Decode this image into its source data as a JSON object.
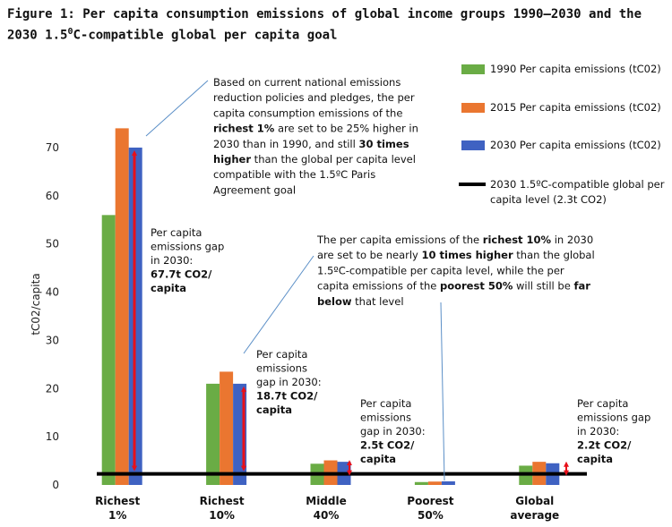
{
  "figure": {
    "title_main": "Figure 1: Per capita consumption emissions of global income groups 1990–2030 and the 2030 1.5",
    "title_super": "0",
    "title_tail": "C-compatible global per capita goal"
  },
  "chart_data": {
    "type": "bar",
    "ylabel": "tC02/capita",
    "ylim": [
      0,
      75
    ],
    "yticks": [
      "0",
      "10",
      "20",
      "30",
      "40",
      "50",
      "60",
      "70"
    ],
    "categories": [
      [
        "Richest",
        "1%"
      ],
      [
        "Richest",
        "10%"
      ],
      [
        "Middle",
        "40%"
      ],
      [
        "Poorest",
        "50%"
      ],
      [
        "Global",
        "average"
      ]
    ],
    "series": [
      {
        "name": "1990 Per capita emissions (tC02)",
        "color": "#6aac45",
        "values": [
          56,
          21,
          4.4,
          0.6,
          4.0
        ]
      },
      {
        "name": "2015 Per capita emissions (tC02)",
        "color": "#ea7630",
        "values": [
          74,
          23.5,
          5.1,
          0.7,
          4.8
        ]
      },
      {
        "name": "2030 Per capita emissions (tC02)",
        "color": "#3f62c2",
        "values": [
          70,
          21,
          4.8,
          0.75,
          4.5
        ]
      }
    ],
    "reference_line": {
      "value": 2.3,
      "lines": [
        "2030 1.5ºC-compatible global per",
        "capita level (2.3t CO2)"
      ],
      "color": "#000000"
    },
    "gaps": [
      {
        "category_index": 0,
        "value": 67.7,
        "lines": [
          "Per capita",
          "emissions gap",
          "in 2030:",
          "67.7t CO2/",
          "capita"
        ],
        "bold_from": 3
      },
      {
        "category_index": 1,
        "value": 18.7,
        "lines": [
          "Per capita",
          "emissions",
          "gap in 2030:",
          "18.7t CO2/",
          "capita"
        ],
        "bold_from": 3
      },
      {
        "category_index": 2,
        "value": 2.5,
        "lines": [
          "Per capita",
          "emissions",
          "gap in 2030:",
          "2.5t CO2/",
          "capita"
        ],
        "bold_from": 3
      },
      {
        "category_index": 4,
        "value": 2.2,
        "lines": [
          "Per capita",
          "emissions gap",
          "in 2030:",
          "2.2t CO2/",
          "capita"
        ],
        "bold_from": 3
      }
    ],
    "annotations": [
      {
        "id": "richest1",
        "lines": [
          [
            {
              "t": "Based on current national emissions"
            }
          ],
          [
            {
              "t": "reduction policies and pledges, the per"
            }
          ],
          [
            {
              "t": "capita consumption emissions of the"
            }
          ],
          [
            {
              "t": "richest 1%",
              "b": true
            },
            {
              "t": " are set to be 25% higher in"
            }
          ],
          [
            {
              "t": "2030 than in 1990, and still "
            },
            {
              "t": "30 times",
              "b": true
            }
          ],
          [
            {
              "t": "higher",
              "b": true
            },
            {
              "t": " than the global per capita level"
            }
          ],
          [
            {
              "t": "compatible with the 1.5ºC Paris"
            }
          ],
          [
            {
              "t": "Agreement goal"
            }
          ]
        ]
      },
      {
        "id": "richest10",
        "lines": [
          [
            {
              "t": "The per capita emissions of the "
            },
            {
              "t": "richest 10%",
              "b": true
            },
            {
              "t": " in 2030"
            }
          ],
          [
            {
              "t": "are set to be nearly "
            },
            {
              "t": "10 times higher",
              "b": true
            },
            {
              "t": " than the global"
            }
          ],
          [
            {
              "t": "1.5ºC-compatible per capita level, while the per"
            }
          ],
          [
            {
              "t": "capita emissions of the "
            },
            {
              "t": "poorest 50%",
              "b": true
            },
            {
              "t": " will still be "
            },
            {
              "t": "far",
              "b": true
            }
          ],
          [
            {
              "t": "below",
              "b": true
            },
            {
              "t": " that level"
            }
          ]
        ]
      }
    ]
  }
}
